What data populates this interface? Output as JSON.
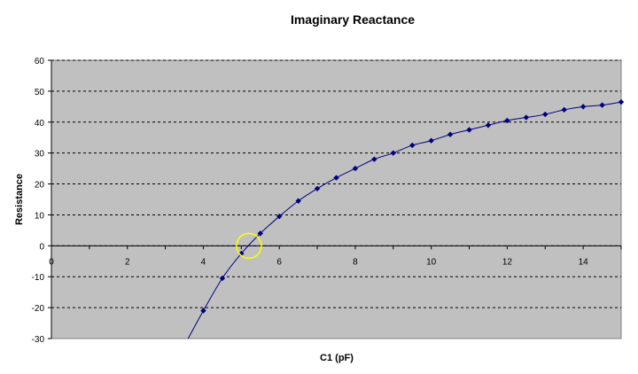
{
  "chart_data": {
    "type": "line",
    "title": "Imaginary Reactance",
    "xlabel": "C1 (pF)",
    "ylabel": "Resistance",
    "xlim": [
      0,
      15
    ],
    "ylim": [
      -30,
      60
    ],
    "x_ticks": [
      0,
      2,
      4,
      6,
      8,
      10,
      12,
      14
    ],
    "y_ticks": [
      60,
      50,
      40,
      30,
      20,
      10,
      0,
      -10,
      -20,
      -30
    ],
    "grid": "horizontal-dashed",
    "legend": "none",
    "colors": {
      "plot_background": "#c0c0c0",
      "series": "#000080",
      "highlight": "#ffff00",
      "grid": "#000000"
    },
    "series": [
      {
        "marker": "diamond",
        "x": [
          4,
          4.5,
          5,
          5.5,
          6,
          6.5,
          7,
          7.5,
          8,
          8.5,
          9,
          9.5,
          10,
          10.5,
          11,
          11.5,
          12,
          12.5,
          13,
          13.5,
          14,
          14.5,
          15
        ],
        "y": [
          -21,
          -10.5,
          -2.5,
          4,
          9.5,
          14.5,
          18.5,
          22,
          25,
          28,
          30,
          32.5,
          34,
          36,
          37.5,
          39,
          40.5,
          41.5,
          42.5,
          44,
          45,
          45.5,
          46.5
        ]
      }
    ],
    "curve_start": {
      "x": 3.6,
      "y": -30
    },
    "annotation": {
      "shape": "circle",
      "x": 5.2,
      "y": 0
    }
  }
}
